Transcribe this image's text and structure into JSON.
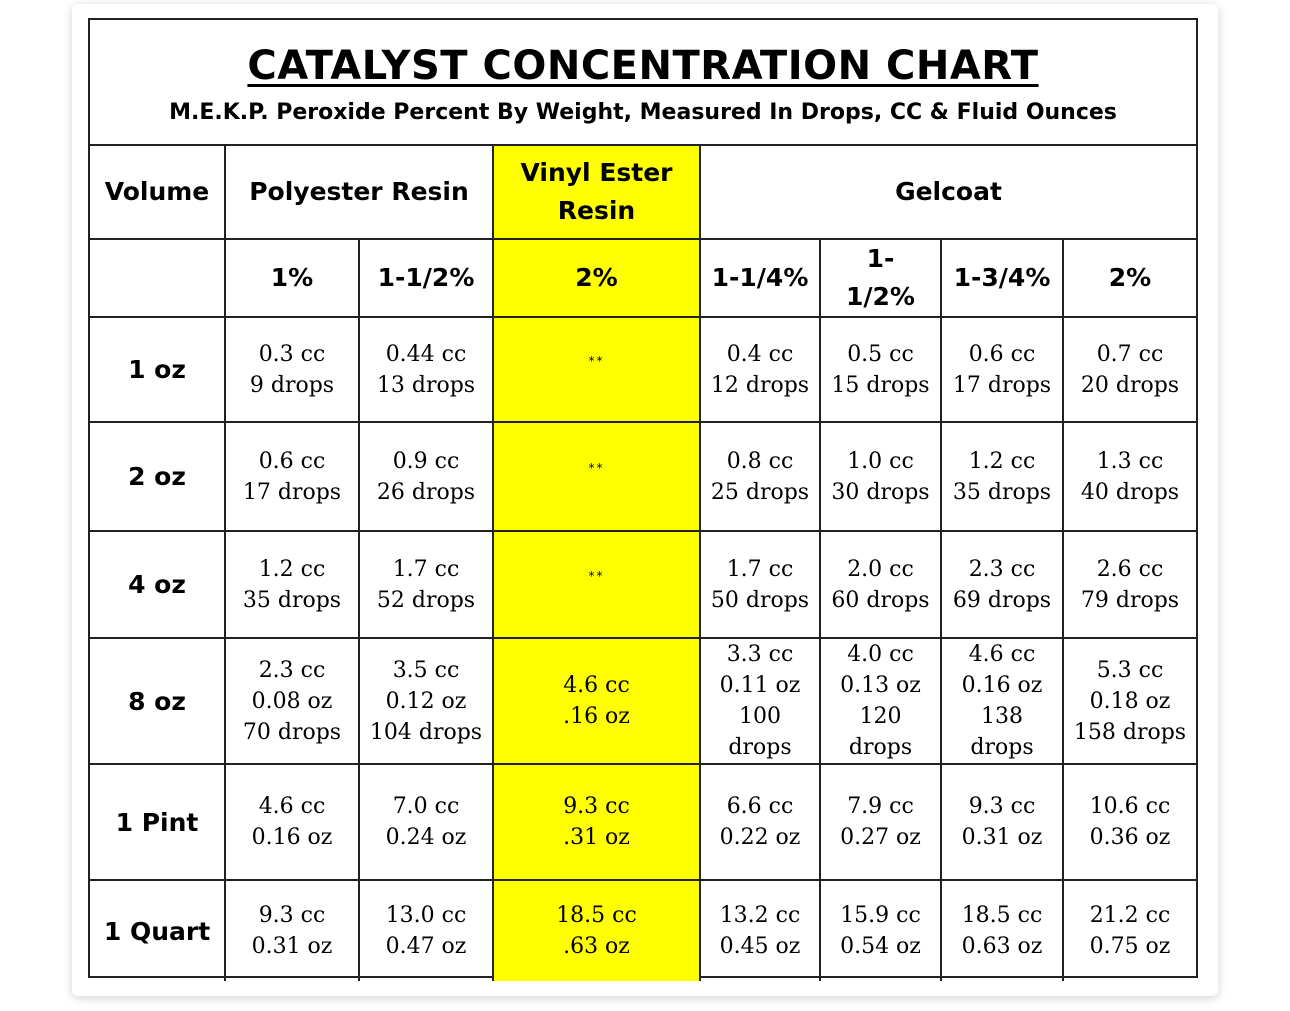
{
  "title": "CATALYST CONCENTRATION CHART",
  "subtitle": "M.E.K.P. Peroxide Percent By Weight, Measured In Drops, CC & Fluid Ounces",
  "headers": {
    "volume": "Volume",
    "polyester": "Polyester Resin",
    "vinyl_ester": "Vinyl Ester Resin",
    "gelcoat": "Gelcoat"
  },
  "percent_headers": [
    "1%",
    "1-1/2%",
    "2%",
    "1-1/4%",
    "1-\n1/2%",
    "1-3/4%",
    "2%"
  ],
  "highlight_color": "#ffff00",
  "rows": [
    {
      "volume": "1 oz",
      "cells": [
        [
          "0.3 cc",
          "9 drops"
        ],
        [
          "0.44 cc",
          "13 drops"
        ],
        [
          "**"
        ],
        [
          "0.4 cc",
          "12 drops"
        ],
        [
          "0.5 cc",
          "15 drops"
        ],
        [
          "0.6 cc",
          "17 drops"
        ],
        [
          "0.7 cc",
          "20 drops"
        ]
      ]
    },
    {
      "volume": "2 oz",
      "cells": [
        [
          "0.6 cc",
          "17 drops"
        ],
        [
          "0.9 cc",
          "26 drops"
        ],
        [
          "**"
        ],
        [
          "0.8 cc",
          "25 drops"
        ],
        [
          "1.0 cc",
          "30 drops"
        ],
        [
          "1.2 cc",
          "35 drops"
        ],
        [
          "1.3 cc",
          "40 drops"
        ]
      ]
    },
    {
      "volume": "4 oz",
      "cells": [
        [
          "1.2 cc",
          "35 drops"
        ],
        [
          "1.7 cc",
          "52 drops"
        ],
        [
          "**"
        ],
        [
          "1.7 cc",
          "50 drops"
        ],
        [
          "2.0 cc",
          "60 drops"
        ],
        [
          "2.3 cc",
          "69 drops"
        ],
        [
          "2.6 cc",
          "79 drops"
        ]
      ]
    },
    {
      "volume": "8 oz",
      "cells": [
        [
          "2.3 cc",
          "0.08 oz",
          "70 drops"
        ],
        [
          "3.5 cc",
          "0.12 oz",
          "104 drops"
        ],
        [
          "4.6 cc",
          ".16 oz"
        ],
        [
          "3.3 cc",
          "0.11 oz",
          "100",
          "drops"
        ],
        [
          "4.0 cc",
          "0.13 oz",
          "120",
          "drops"
        ],
        [
          "4.6 cc",
          "0.16 oz",
          "138",
          "drops"
        ],
        [
          "5.3 cc",
          "0.18 oz",
          "158 drops"
        ]
      ]
    },
    {
      "volume": "1 Pint",
      "cells": [
        [
          "4.6 cc",
          "0.16 oz"
        ],
        [
          "7.0 cc",
          "0.24 oz"
        ],
        [
          "9.3 cc",
          ".31 oz"
        ],
        [
          "6.6 cc",
          "0.22 oz"
        ],
        [
          "7.9 cc",
          "0.27 oz"
        ],
        [
          "9.3 cc",
          "0.31 oz"
        ],
        [
          "10.6 cc",
          "0.36 oz"
        ]
      ]
    },
    {
      "volume": "1 Quart",
      "cells": [
        [
          "9.3 cc",
          "0.31 oz"
        ],
        [
          "13.0 cc",
          "0.47 oz"
        ],
        [
          "18.5 cc",
          ".63 oz"
        ],
        [
          "13.2 cc",
          "0.45 oz"
        ],
        [
          "15.9 cc",
          "0.54 oz"
        ],
        [
          "18.5 cc",
          "0.63 oz"
        ],
        [
          "21.2 cc",
          "0.75 oz"
        ]
      ]
    }
  ]
}
